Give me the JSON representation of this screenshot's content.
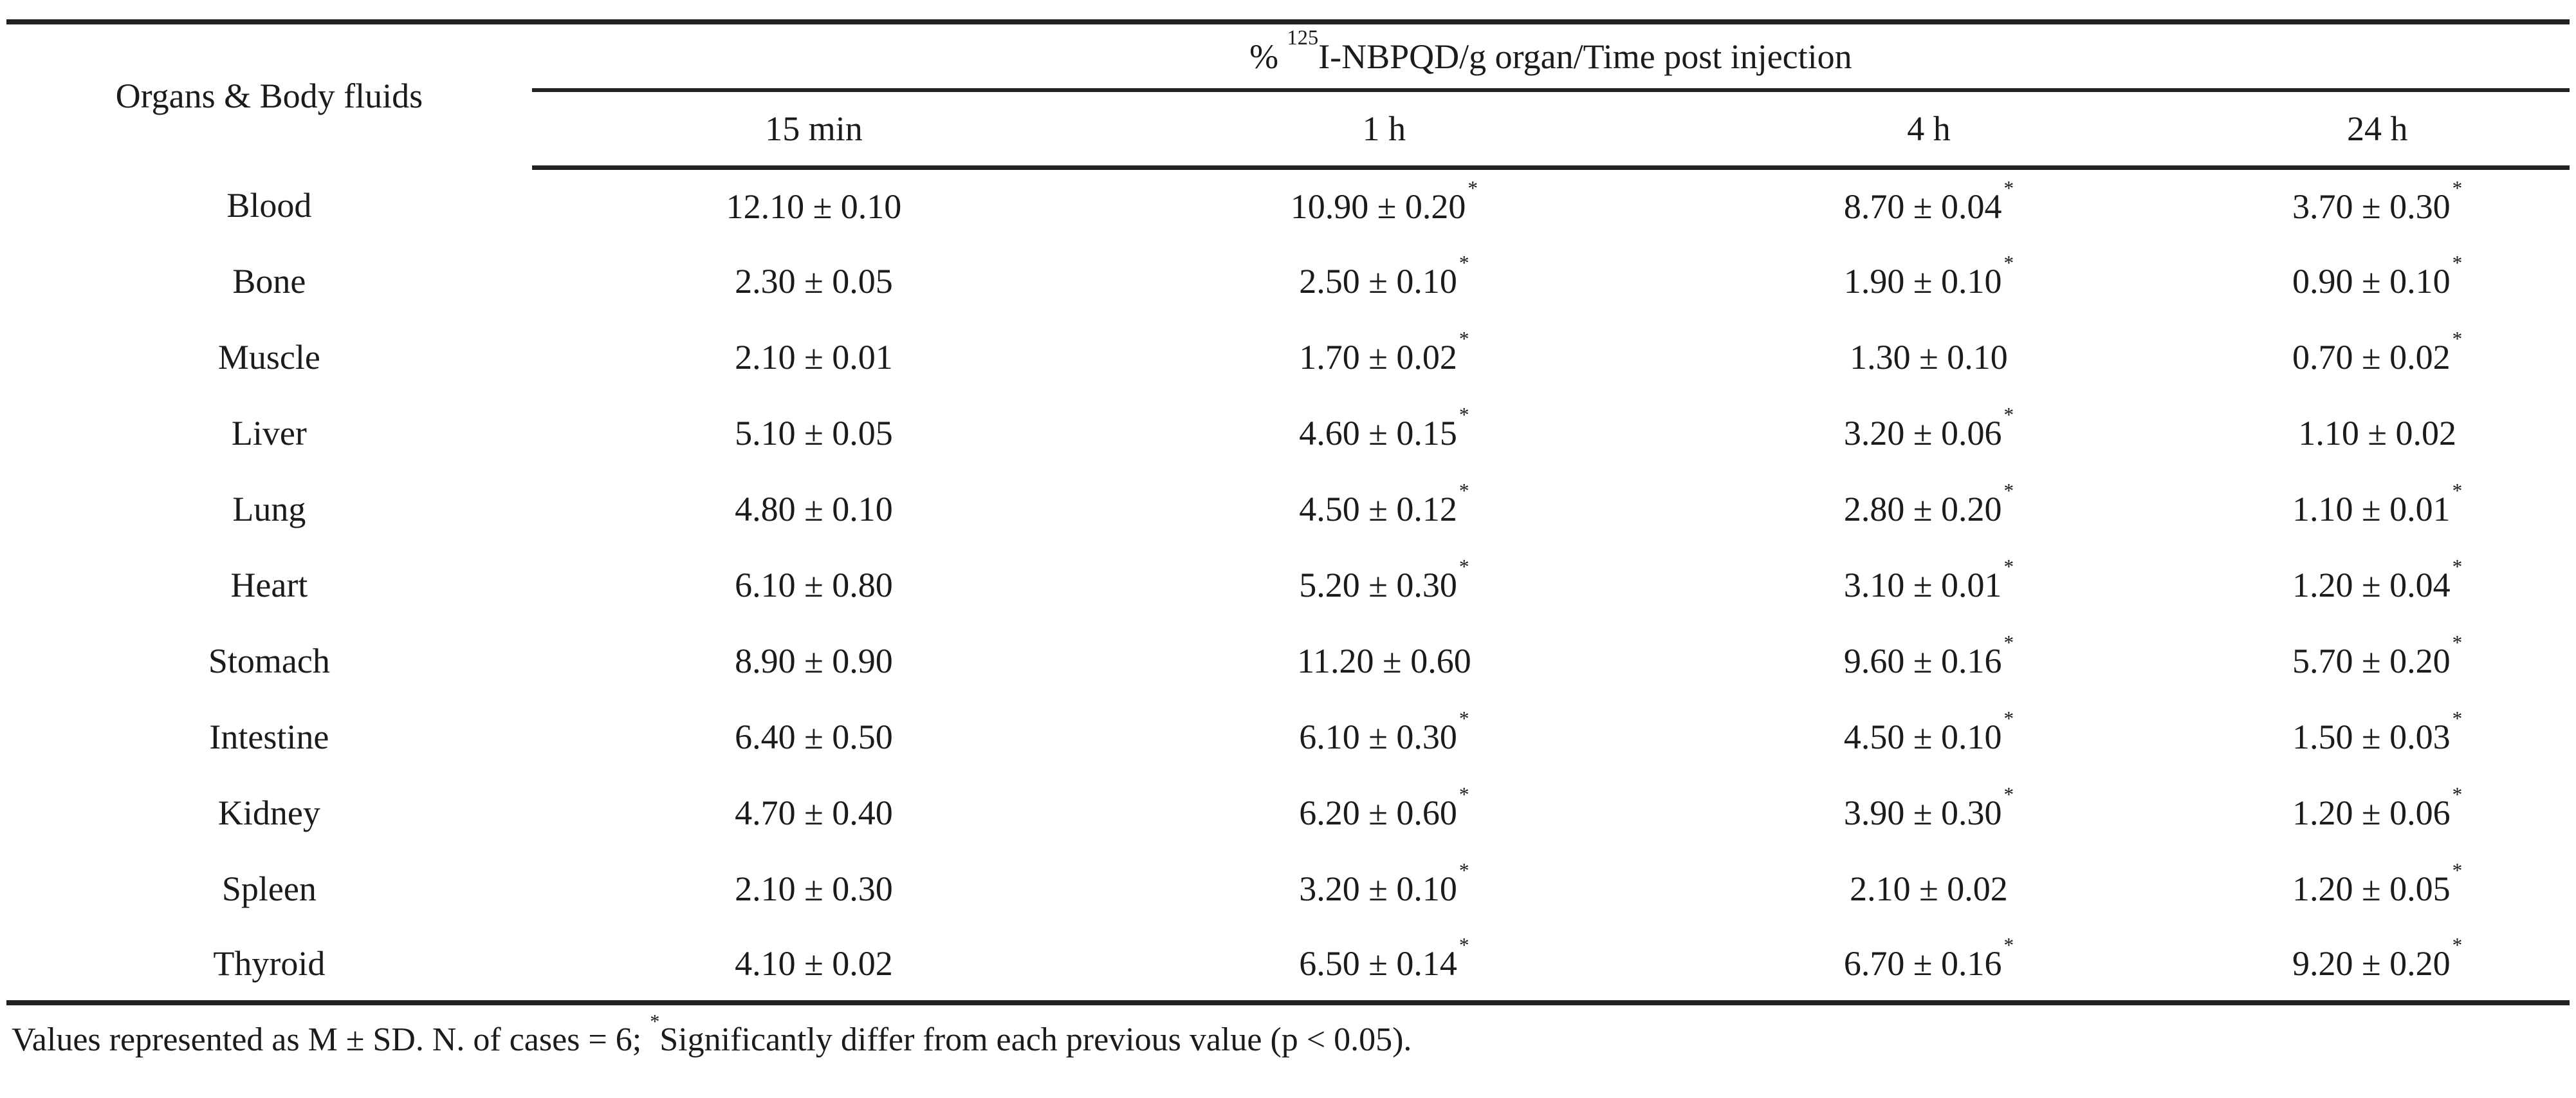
{
  "page": {
    "background": "#ffffff",
    "ink": "#1b1b1b",
    "rule_color": "#222222"
  },
  "table": {
    "corner_header": "Organs & Body fluids",
    "span_header": {
      "percent_prefix": "% ",
      "isotope_superscript": "125",
      "rest": "I-NBPQD/g organ/Time post injection"
    },
    "time_columns": [
      "15 min",
      "1 h",
      "4 h",
      "24 h"
    ],
    "plus_minus": "±",
    "star_symbol": "*",
    "rows": [
      {
        "organ": "Blood",
        "mean": [
          12.1,
          10.9,
          8.7,
          3.7
        ],
        "sd": [
          0.1,
          0.2,
          0.04,
          0.3
        ],
        "star": [
          false,
          true,
          true,
          true
        ]
      },
      {
        "organ": "Bone",
        "mean": [
          2.3,
          2.5,
          1.9,
          0.9
        ],
        "sd": [
          0.05,
          0.1,
          0.1,
          0.1
        ],
        "star": [
          false,
          true,
          true,
          true
        ]
      },
      {
        "organ": "Muscle",
        "mean": [
          2.1,
          1.7,
          1.3,
          0.7
        ],
        "sd": [
          0.01,
          0.02,
          0.1,
          0.02
        ],
        "star": [
          false,
          true,
          false,
          true
        ]
      },
      {
        "organ": "Liver",
        "mean": [
          5.1,
          4.6,
          3.2,
          1.1
        ],
        "sd": [
          0.05,
          0.15,
          0.06,
          0.02
        ],
        "star": [
          false,
          true,
          true,
          false
        ]
      },
      {
        "organ": "Lung",
        "mean": [
          4.8,
          4.5,
          2.8,
          1.1
        ],
        "sd": [
          0.1,
          0.12,
          0.2,
          0.01
        ],
        "star": [
          false,
          true,
          true,
          true
        ]
      },
      {
        "organ": "Heart",
        "mean": [
          6.1,
          5.2,
          3.1,
          1.2
        ],
        "sd": [
          0.8,
          0.3,
          0.01,
          0.04
        ],
        "star": [
          false,
          true,
          true,
          true
        ]
      },
      {
        "organ": "Stomach",
        "mean": [
          8.9,
          11.2,
          9.6,
          5.7
        ],
        "sd": [
          0.9,
          0.6,
          0.16,
          0.2
        ],
        "star": [
          false,
          false,
          true,
          true
        ]
      },
      {
        "organ": "Intestine",
        "mean": [
          6.4,
          6.1,
          4.5,
          1.5
        ],
        "sd": [
          0.5,
          0.3,
          0.1,
          0.03
        ],
        "star": [
          false,
          true,
          true,
          true
        ]
      },
      {
        "organ": "Kidney",
        "mean": [
          4.7,
          6.2,
          3.9,
          1.2
        ],
        "sd": [
          0.4,
          0.6,
          0.3,
          0.06
        ],
        "star": [
          false,
          true,
          true,
          true
        ]
      },
      {
        "organ": "Spleen",
        "mean": [
          2.1,
          3.2,
          2.1,
          1.2
        ],
        "sd": [
          0.3,
          0.1,
          0.02,
          0.05
        ],
        "star": [
          false,
          true,
          false,
          true
        ]
      },
      {
        "organ": "Thyroid",
        "mean": [
          4.1,
          6.5,
          6.7,
          9.2
        ],
        "sd": [
          0.02,
          0.14,
          0.16,
          0.2
        ],
        "star": [
          false,
          true,
          true,
          true
        ]
      }
    ],
    "footnote": {
      "before_star": "Values represented as M ± SD. N. of cases = 6; ",
      "star": "*",
      "after_star": "Significantly differ from each previous value (p < 0.05)."
    }
  },
  "chart_data": {
    "type": "table",
    "title": "% 125I-NBPQD/g organ/Time post injection",
    "row_header": "Organs & Body fluids",
    "categories": [
      "15 min",
      "1 h",
      "4 h",
      "24 h"
    ],
    "series": [
      {
        "name": "Blood",
        "values": [
          12.1,
          10.9,
          8.7,
          3.7
        ],
        "sd": [
          0.1,
          0.2,
          0.04,
          0.3
        ],
        "significant": [
          false,
          true,
          true,
          true
        ]
      },
      {
        "name": "Bone",
        "values": [
          2.3,
          2.5,
          1.9,
          0.9
        ],
        "sd": [
          0.05,
          0.1,
          0.1,
          0.1
        ],
        "significant": [
          false,
          true,
          true,
          true
        ]
      },
      {
        "name": "Muscle",
        "values": [
          2.1,
          1.7,
          1.3,
          0.7
        ],
        "sd": [
          0.01,
          0.02,
          0.1,
          0.02
        ],
        "significant": [
          false,
          true,
          false,
          true
        ]
      },
      {
        "name": "Liver",
        "values": [
          5.1,
          4.6,
          3.2,
          1.1
        ],
        "sd": [
          0.05,
          0.15,
          0.06,
          0.02
        ],
        "significant": [
          false,
          true,
          true,
          false
        ]
      },
      {
        "name": "Lung",
        "values": [
          4.8,
          4.5,
          2.8,
          1.1
        ],
        "sd": [
          0.1,
          0.12,
          0.2,
          0.01
        ],
        "significant": [
          false,
          true,
          true,
          true
        ]
      },
      {
        "name": "Heart",
        "values": [
          6.1,
          5.2,
          3.1,
          1.2
        ],
        "sd": [
          0.8,
          0.3,
          0.01,
          0.04
        ],
        "significant": [
          false,
          true,
          true,
          true
        ]
      },
      {
        "name": "Stomach",
        "values": [
          8.9,
          11.2,
          9.6,
          5.7
        ],
        "sd": [
          0.9,
          0.6,
          0.16,
          0.2
        ],
        "significant": [
          false,
          false,
          true,
          true
        ]
      },
      {
        "name": "Intestine",
        "values": [
          6.4,
          6.1,
          4.5,
          1.5
        ],
        "sd": [
          0.5,
          0.3,
          0.1,
          0.03
        ],
        "significant": [
          false,
          true,
          true,
          true
        ]
      },
      {
        "name": "Kidney",
        "values": [
          4.7,
          6.2,
          3.9,
          1.2
        ],
        "sd": [
          0.4,
          0.6,
          0.3,
          0.06
        ],
        "significant": [
          false,
          true,
          true,
          true
        ]
      },
      {
        "name": "Spleen",
        "values": [
          2.1,
          3.2,
          2.1,
          1.2
        ],
        "sd": [
          0.3,
          0.1,
          0.02,
          0.05
        ],
        "significant": [
          false,
          true,
          false,
          true
        ]
      },
      {
        "name": "Thyroid",
        "values": [
          4.1,
          6.5,
          6.7,
          9.2
        ],
        "sd": [
          0.02,
          0.14,
          0.16,
          0.2
        ],
        "significant": [
          false,
          true,
          true,
          true
        ]
      }
    ],
    "footnote": "Values represented as M ± SD. N. of cases = 6; *Significantly differ from each previous value (p < 0.05)."
  }
}
